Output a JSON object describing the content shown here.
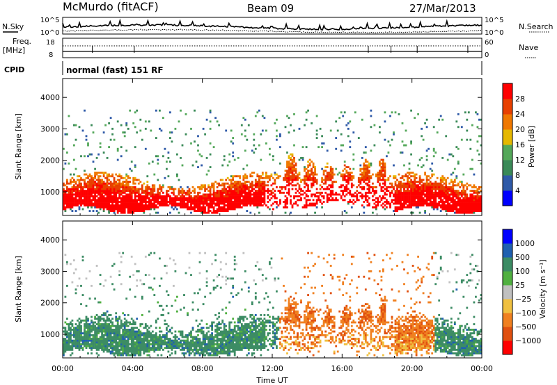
{
  "header": {
    "station": "McMurdo (fitACF)",
    "beam": "Beam 09",
    "date": "27/Mar/2013"
  },
  "top_panels": {
    "nsky_label": "N.Sky",
    "nsearch_label": "N.Search",
    "freq_label_1": "Freq.",
    "freq_label_2": "[MHz]",
    "nave_label": "Nave",
    "cpid_label": "CPID",
    "cpid_text": "normal (fast) 151 RF",
    "noise_ticks": [
      "10^5",
      "10^0"
    ],
    "freq_ticks": [
      "18",
      "8"
    ],
    "nave_ticks": [
      "60",
      "0"
    ]
  },
  "colors": {
    "power_scale": [
      "#0000ff",
      "#2f5aa8",
      "#3a8a58",
      "#54a85a",
      "#e6b800",
      "#f07800",
      "#e84000",
      "#ff0000"
    ],
    "velocity_scale": [
      "#0000ff",
      "#2060b0",
      "#3c8c64",
      "#50b040",
      "#c0c0c0",
      "#f0c040",
      "#f08020",
      "#e05010",
      "#ff0000"
    ]
  },
  "chart_data": [
    {
      "type": "heatmap",
      "name": "power",
      "ylabel": "Slant Range [km]",
      "ylim": [
        250,
        4600
      ],
      "y_ticks": [
        "1000",
        "2000",
        "3000",
        "4000"
      ],
      "x_ticks": [
        "00:00",
        "04:00",
        "08:00",
        "12:00",
        "16:00",
        "20:00",
        "00:00"
      ],
      "xlim_hours": [
        0,
        24
      ],
      "colorbar_label": "Power [dB]",
      "colorbar_ticks": [
        "4",
        "8",
        "12",
        "16",
        "20",
        "24",
        "28"
      ],
      "colorbar_range": [
        0,
        32
      ]
    },
    {
      "type": "heatmap",
      "name": "velocity",
      "ylabel": "Slant Range [km]",
      "ylim": [
        250,
        4600
      ],
      "y_ticks": [
        "1000",
        "2000",
        "3000",
        "4000"
      ],
      "x_ticks": [
        "00:00",
        "04:00",
        "08:00",
        "12:00",
        "16:00",
        "20:00",
        "00:00"
      ],
      "xlim_hours": [
        0,
        24
      ],
      "xlabel": "Time UT",
      "colorbar_label": "Velocity [m s⁻¹]",
      "colorbar_ticks": [
        "1000",
        "500",
        "100",
        "25",
        "−25",
        "−100",
        "−500",
        "−1000"
      ]
    }
  ]
}
